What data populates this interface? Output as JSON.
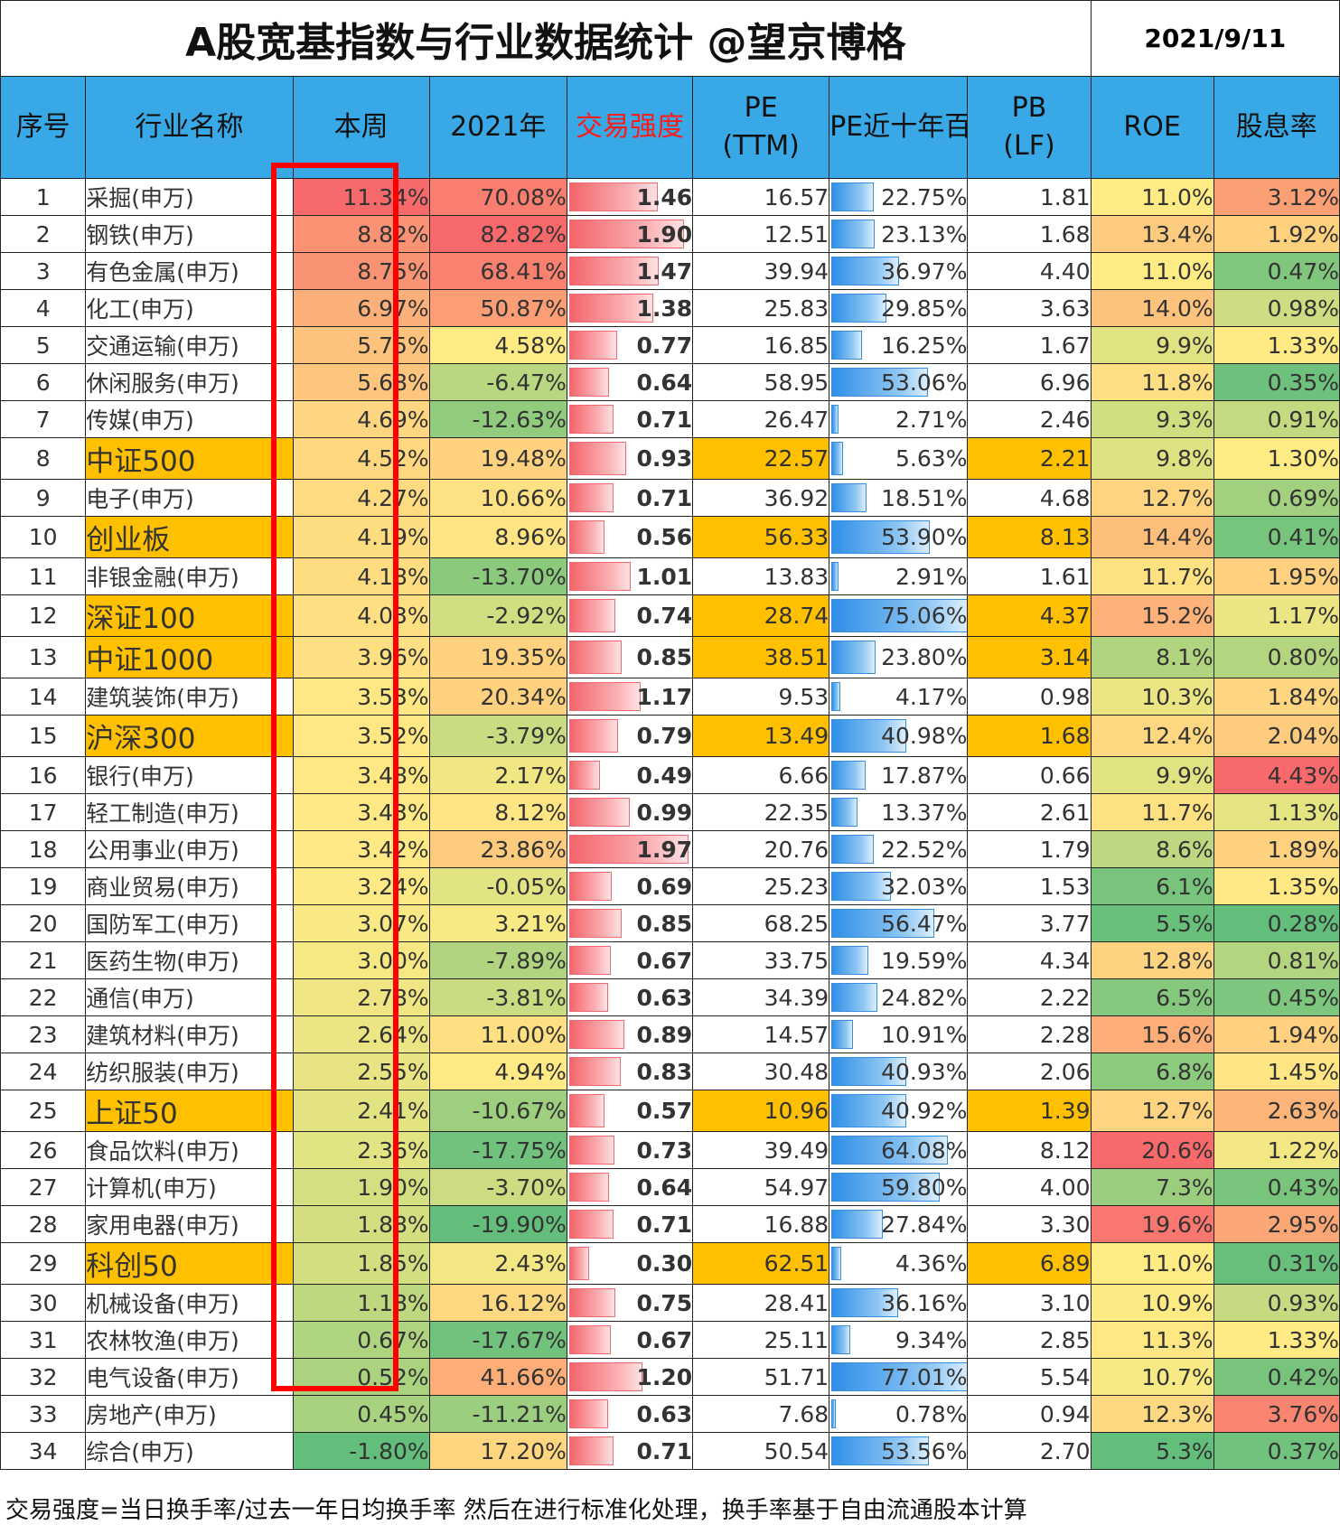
{
  "title": "A股宽基指数与行业数据统计  @望京博格",
  "date": "2021/9/11",
  "headers": {
    "idx": "序号",
    "name": "行业名称",
    "week": "本周",
    "year": "2021年",
    "strength": "交易强度",
    "pe": "PE\n(TTM)",
    "pe_pct": "PE近十年百分位",
    "pb": "PB\n(LF)",
    "roe": "ROE",
    "div": "股息率"
  },
  "colors": {
    "header": "#38a9e6",
    "index_highlight": "#ffc000",
    "box": "#ff0000",
    "strength_header": "#ff1a1a"
  },
  "rows": [
    {
      "idx": "1",
      "name": "采掘(申万)",
      "week": "11.34%",
      "year": "70.08%",
      "strength": "1.46",
      "pe": "16.57",
      "pe_pct": "22.75%",
      "pb": "1.81",
      "roe": "11.0%",
      "div": "3.12%",
      "is_index": false
    },
    {
      "idx": "2",
      "name": "钢铁(申万)",
      "week": "8.82%",
      "year": "82.82%",
      "strength": "1.90",
      "pe": "12.51",
      "pe_pct": "23.13%",
      "pb": "1.68",
      "roe": "13.4%",
      "div": "1.92%",
      "is_index": false
    },
    {
      "idx": "3",
      "name": "有色金属(申万)",
      "week": "8.75%",
      "year": "68.41%",
      "strength": "1.47",
      "pe": "39.94",
      "pe_pct": "36.97%",
      "pb": "4.40",
      "roe": "11.0%",
      "div": "0.47%",
      "is_index": false
    },
    {
      "idx": "4",
      "name": "化工(申万)",
      "week": "6.97%",
      "year": "50.87%",
      "strength": "1.38",
      "pe": "25.83",
      "pe_pct": "29.85%",
      "pb": "3.63",
      "roe": "14.0%",
      "div": "0.98%",
      "is_index": false
    },
    {
      "idx": "5",
      "name": "交通运输(申万)",
      "week": "5.75%",
      "year": "4.58%",
      "strength": "0.77",
      "pe": "16.85",
      "pe_pct": "16.25%",
      "pb": "1.67",
      "roe": "9.9%",
      "div": "1.33%",
      "is_index": false
    },
    {
      "idx": "6",
      "name": "休闲服务(申万)",
      "week": "5.68%",
      "year": "-6.47%",
      "strength": "0.64",
      "pe": "58.95",
      "pe_pct": "53.06%",
      "pb": "6.96",
      "roe": "11.8%",
      "div": "0.35%",
      "is_index": false
    },
    {
      "idx": "7",
      "name": "传媒(申万)",
      "week": "4.69%",
      "year": "-12.63%",
      "strength": "0.71",
      "pe": "26.47",
      "pe_pct": "2.71%",
      "pb": "2.46",
      "roe": "9.3%",
      "div": "0.91%",
      "is_index": false
    },
    {
      "idx": "8",
      "name": "中证500",
      "week": "4.52%",
      "year": "19.48%",
      "strength": "0.93",
      "pe": "22.57",
      "pe_pct": "5.63%",
      "pb": "2.21",
      "roe": "9.8%",
      "div": "1.30%",
      "is_index": true
    },
    {
      "idx": "9",
      "name": "电子(申万)",
      "week": "4.27%",
      "year": "10.66%",
      "strength": "0.71",
      "pe": "36.92",
      "pe_pct": "18.51%",
      "pb": "4.68",
      "roe": "12.7%",
      "div": "0.69%",
      "is_index": false
    },
    {
      "idx": "10",
      "name": "创业板",
      "week": "4.19%",
      "year": "8.96%",
      "strength": "0.56",
      "pe": "56.33",
      "pe_pct": "53.90%",
      "pb": "8.13",
      "roe": "14.4%",
      "div": "0.41%",
      "is_index": true
    },
    {
      "idx": "11",
      "name": "非银金融(申万)",
      "week": "4.18%",
      "year": "-13.70%",
      "strength": "1.01",
      "pe": "13.83",
      "pe_pct": "2.91%",
      "pb": "1.61",
      "roe": "11.7%",
      "div": "1.95%",
      "is_index": false
    },
    {
      "idx": "12",
      "name": "深证100",
      "week": "4.03%",
      "year": "-2.92%",
      "strength": "0.74",
      "pe": "28.74",
      "pe_pct": "75.06%",
      "pb": "4.37",
      "roe": "15.2%",
      "div": "1.17%",
      "is_index": true
    },
    {
      "idx": "13",
      "name": "中证1000",
      "week": "3.96%",
      "year": "19.35%",
      "strength": "0.85",
      "pe": "38.51",
      "pe_pct": "23.80%",
      "pb": "3.14",
      "roe": "8.1%",
      "div": "0.80%",
      "is_index": true
    },
    {
      "idx": "14",
      "name": "建筑装饰(申万)",
      "week": "3.53%",
      "year": "20.34%",
      "strength": "1.17",
      "pe": "9.53",
      "pe_pct": "4.17%",
      "pb": "0.98",
      "roe": "10.3%",
      "div": "1.84%",
      "is_index": false
    },
    {
      "idx": "15",
      "name": "沪深300",
      "week": "3.52%",
      "year": "-3.79%",
      "strength": "0.79",
      "pe": "13.49",
      "pe_pct": "40.98%",
      "pb": "1.68",
      "roe": "12.4%",
      "div": "2.04%",
      "is_index": true
    },
    {
      "idx": "16",
      "name": "银行(申万)",
      "week": "3.48%",
      "year": "2.17%",
      "strength": "0.49",
      "pe": "6.66",
      "pe_pct": "17.87%",
      "pb": "0.66",
      "roe": "9.9%",
      "div": "4.43%",
      "is_index": false
    },
    {
      "idx": "17",
      "name": "轻工制造(申万)",
      "week": "3.43%",
      "year": "8.12%",
      "strength": "0.99",
      "pe": "22.35",
      "pe_pct": "13.37%",
      "pb": "2.61",
      "roe": "11.7%",
      "div": "1.13%",
      "is_index": false
    },
    {
      "idx": "18",
      "name": "公用事业(申万)",
      "week": "3.42%",
      "year": "23.86%",
      "strength": "1.97",
      "pe": "20.76",
      "pe_pct": "22.52%",
      "pb": "1.79",
      "roe": "8.6%",
      "div": "1.89%",
      "is_index": false
    },
    {
      "idx": "19",
      "name": "商业贸易(申万)",
      "week": "3.24%",
      "year": "-0.05%",
      "strength": "0.69",
      "pe": "25.23",
      "pe_pct": "32.03%",
      "pb": "1.53",
      "roe": "6.1%",
      "div": "1.35%",
      "is_index": false
    },
    {
      "idx": "20",
      "name": "国防军工(申万)",
      "week": "3.07%",
      "year": "3.21%",
      "strength": "0.85",
      "pe": "68.25",
      "pe_pct": "56.47%",
      "pb": "3.77",
      "roe": "5.5%",
      "div": "0.28%",
      "is_index": false
    },
    {
      "idx": "21",
      "name": "医药生物(申万)",
      "week": "3.00%",
      "year": "-7.89%",
      "strength": "0.67",
      "pe": "33.75",
      "pe_pct": "19.59%",
      "pb": "4.34",
      "roe": "12.8%",
      "div": "0.81%",
      "is_index": false
    },
    {
      "idx": "22",
      "name": "通信(申万)",
      "week": "2.78%",
      "year": "-3.81%",
      "strength": "0.63",
      "pe": "34.39",
      "pe_pct": "24.82%",
      "pb": "2.22",
      "roe": "6.5%",
      "div": "0.45%",
      "is_index": false
    },
    {
      "idx": "23",
      "name": "建筑材料(申万)",
      "week": "2.64%",
      "year": "11.00%",
      "strength": "0.89",
      "pe": "14.57",
      "pe_pct": "10.91%",
      "pb": "2.28",
      "roe": "15.6%",
      "div": "1.94%",
      "is_index": false
    },
    {
      "idx": "24",
      "name": "纺织服装(申万)",
      "week": "2.55%",
      "year": "4.94%",
      "strength": "0.83",
      "pe": "30.48",
      "pe_pct": "40.93%",
      "pb": "2.06",
      "roe": "6.8%",
      "div": "1.45%",
      "is_index": false
    },
    {
      "idx": "25",
      "name": "上证50",
      "week": "2.41%",
      "year": "-10.67%",
      "strength": "0.57",
      "pe": "10.96",
      "pe_pct": "40.92%",
      "pb": "1.39",
      "roe": "12.7%",
      "div": "2.63%",
      "is_index": true
    },
    {
      "idx": "26",
      "name": "食品饮料(申万)",
      "week": "2.36%",
      "year": "-17.75%",
      "strength": "0.73",
      "pe": "39.49",
      "pe_pct": "64.08%",
      "pb": "8.12",
      "roe": "20.6%",
      "div": "1.22%",
      "is_index": false
    },
    {
      "idx": "27",
      "name": "计算机(申万)",
      "week": "1.90%",
      "year": "-3.70%",
      "strength": "0.64",
      "pe": "54.97",
      "pe_pct": "59.80%",
      "pb": "4.00",
      "roe": "7.3%",
      "div": "0.43%",
      "is_index": false
    },
    {
      "idx": "28",
      "name": "家用电器(申万)",
      "week": "1.88%",
      "year": "-19.90%",
      "strength": "0.71",
      "pe": "16.88",
      "pe_pct": "27.84%",
      "pb": "3.30",
      "roe": "19.6%",
      "div": "2.95%",
      "is_index": false
    },
    {
      "idx": "29",
      "name": "科创50",
      "week": "1.85%",
      "year": "2.43%",
      "strength": "0.30",
      "pe": "62.51",
      "pe_pct": "4.36%",
      "pb": "6.89",
      "roe": "11.0%",
      "div": "0.31%",
      "is_index": true
    },
    {
      "idx": "30",
      "name": "机械设备(申万)",
      "week": "1.18%",
      "year": "16.12%",
      "strength": "0.75",
      "pe": "28.41",
      "pe_pct": "36.16%",
      "pb": "3.10",
      "roe": "10.9%",
      "div": "0.93%",
      "is_index": false
    },
    {
      "idx": "31",
      "name": "农林牧渔(申万)",
      "week": "0.67%",
      "year": "-17.67%",
      "strength": "0.67",
      "pe": "25.11",
      "pe_pct": "9.34%",
      "pb": "2.85",
      "roe": "11.3%",
      "div": "1.33%",
      "is_index": false
    },
    {
      "idx": "32",
      "name": "电气设备(申万)",
      "week": "0.52%",
      "year": "41.66%",
      "strength": "1.20",
      "pe": "51.71",
      "pe_pct": "77.01%",
      "pb": "5.54",
      "roe": "10.7%",
      "div": "0.42%",
      "is_index": false
    },
    {
      "idx": "33",
      "name": "房地产(申万)",
      "week": "0.45%",
      "year": "-11.21%",
      "strength": "0.63",
      "pe": "7.68",
      "pe_pct": "0.78%",
      "pb": "0.94",
      "roe": "12.3%",
      "div": "3.76%",
      "is_index": false
    },
    {
      "idx": "34",
      "name": "综合(申万)",
      "week": "-1.80%",
      "year": "17.20%",
      "strength": "0.71",
      "pe": "50.54",
      "pe_pct": "53.56%",
      "pb": "2.70",
      "roe": "5.3%",
      "div": "0.37%",
      "is_index": false
    }
  ],
  "footer": "交易强度=当日换手率/过去一年日均换手率 然后在进行标准化处理，换手率基于自由流通股本计算"
}
